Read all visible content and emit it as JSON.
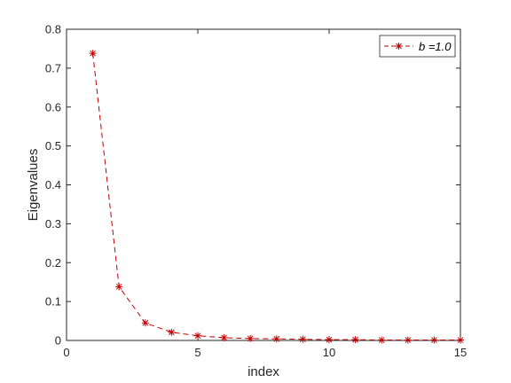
{
  "chart_data": {
    "type": "line",
    "xlabel": "index",
    "ylabel": "Eigenvalues",
    "xlim": [
      0,
      15
    ],
    "ylim": [
      0,
      0.8
    ],
    "xticks": [
      0,
      5,
      10,
      15
    ],
    "xtick_labels": [
      "0",
      "5",
      "10",
      "15"
    ],
    "yticks": [
      0,
      0.1,
      0.2,
      0.3,
      0.4,
      0.5,
      0.6,
      0.7,
      0.8
    ],
    "ytick_labels": [
      "0",
      "0.1",
      "0.2",
      "0.3",
      "0.4",
      "0.5",
      "0.6",
      "0.7",
      "0.8"
    ],
    "grid": false,
    "legend_position": "top-right",
    "series": [
      {
        "name": "b =1.0",
        "color": "#c00000",
        "line_style": "dashed",
        "marker": "asterisk",
        "x": [
          1,
          2,
          3,
          4,
          5,
          6,
          7,
          8,
          9,
          10,
          11,
          12,
          13,
          14,
          15
        ],
        "y": [
          0.738,
          0.138,
          0.045,
          0.021,
          0.012,
          0.007,
          0.005,
          0.004,
          0.003,
          0.002,
          0.002,
          0.001,
          0.001,
          0.001,
          0.001
        ]
      }
    ]
  }
}
